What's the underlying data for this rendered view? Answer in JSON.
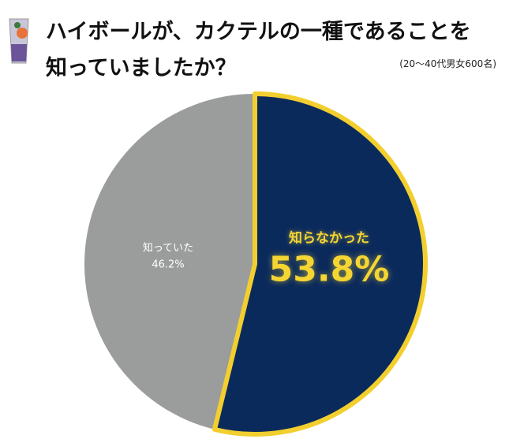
{
  "header": {
    "title_line1": "ハイボールが、カクテルの一種であることを",
    "title_line2": "知っていましたか？",
    "note": "(20〜40代男女600名)",
    "icon": "cocktail-glass-icon"
  },
  "chart_data": {
    "type": "pie",
    "title": "ハイボールが、カクテルの一種であることを知っていましたか？",
    "slices": [
      {
        "label": "知らなかった",
        "value": 53.8,
        "display": "53.8%",
        "color": "#0b2a5c",
        "outline": "#f2cf2e"
      },
      {
        "label": "知っていた",
        "value": 46.2,
        "display": "46.2%",
        "color": "#9b9c9c"
      }
    ],
    "start_angle": "12 o'clock",
    "direction": "clockwise"
  }
}
